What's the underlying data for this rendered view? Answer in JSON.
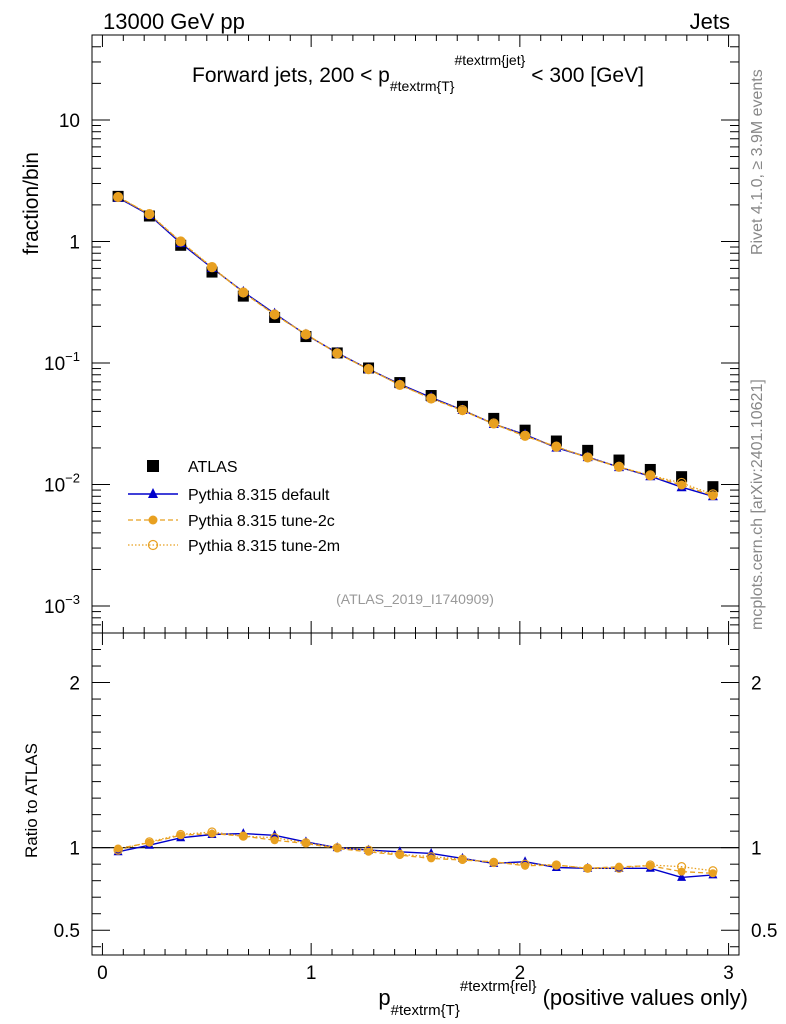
{
  "header": {
    "left": "13000 GeV pp",
    "right": "Jets"
  },
  "side": {
    "rivet": "Rivet 4.1.0, ≥ 3.9M events",
    "mcplots": "mcplots.cern.ch [arXiv:2401.10621]"
  },
  "colors": {
    "data": "#000000",
    "default": "#0000cc",
    "tune2c": "#e8a020",
    "tune2m": "#e8a020"
  },
  "chart_data": {
    "type": "scatter",
    "title_parts": {
      "prefix": "Forward jets, 200 < p",
      "sub": "#textrm{T}",
      "sup": "#textrm{jet}",
      "suffix": "< 300 [GeV]"
    },
    "ylabel": "fraction/bin",
    "ratio_ylabel": "Ratio to ATLAS",
    "xlabel_parts": {
      "p": "p",
      "sub": "#textrm{T}",
      "sup": "#textrm{rel}",
      "suffix": "(positive values only)"
    },
    "watermark": "(ATLAS_2019_I1740909)",
    "xlim": [
      -0.05,
      3.05
    ],
    "ylim": [
      0.0006,
      50
    ],
    "ratio_ylim": [
      0.35,
      2.3
    ],
    "x_ticks": [
      {
        "v": 0,
        "label": "0"
      },
      {
        "v": 1,
        "label": "1"
      },
      {
        "v": 2,
        "label": "2"
      },
      {
        "v": 3,
        "label": "3"
      }
    ],
    "y_ticks": [
      {
        "v": 10,
        "base": "10",
        "exp": ""
      },
      {
        "v": 1,
        "base": "1",
        "exp": ""
      },
      {
        "v": 0.1,
        "base": "10",
        "exp": "−1"
      },
      {
        "v": 0.01,
        "base": "10",
        "exp": "−2"
      },
      {
        "v": 0.001,
        "base": "10",
        "exp": "−3"
      }
    ],
    "ratio_ticks": [
      {
        "v": 2,
        "label": "2"
      },
      {
        "v": 1,
        "label": "1"
      },
      {
        "v": 0.5,
        "label": "0.5"
      }
    ],
    "x": [
      0.075,
      0.225,
      0.375,
      0.525,
      0.675,
      0.825,
      0.975,
      1.125,
      1.275,
      1.425,
      1.575,
      1.725,
      1.875,
      2.025,
      2.175,
      2.325,
      2.475,
      2.625,
      2.775,
      2.925
    ],
    "series": [
      {
        "name": "ATLAS",
        "key": "data",
        "style": "square",
        "values": [
          2.35,
          1.62,
          0.93,
          0.56,
          0.355,
          0.237,
          0.165,
          0.121,
          0.091,
          0.069,
          0.054,
          0.044,
          0.035,
          0.028,
          0.0228,
          0.0191,
          0.0159,
          0.0133,
          0.0116,
          0.0096
        ]
      },
      {
        "name": "Pythia 8.315 default",
        "key": "default",
        "style": "triangle",
        "values": [
          2.29,
          1.65,
          0.97,
          0.605,
          0.385,
          0.255,
          0.171,
          0.121,
          0.089,
          0.067,
          0.052,
          0.041,
          0.0315,
          0.0257,
          0.0201,
          0.0168,
          0.0139,
          0.0117,
          0.0095,
          0.008
        ],
        "ratio": [
          0.975,
          1.015,
          1.06,
          1.08,
          1.085,
          1.075,
          1.035,
          1.0,
          0.985,
          0.975,
          0.965,
          0.935,
          0.905,
          0.915,
          0.88,
          0.875,
          0.875,
          0.875,
          0.82,
          0.835
        ]
      },
      {
        "name": "Pythia 8.315 tune-2c",
        "key": "tune2c",
        "style": "circle",
        "values": [
          2.34,
          1.67,
          1.0,
          0.61,
          0.38,
          0.249,
          0.173,
          0.12,
          0.089,
          0.066,
          0.051,
          0.0405,
          0.0315,
          0.025,
          0.0205,
          0.0166,
          0.014,
          0.0118,
          0.0099,
          0.0081
        ],
        "ratio": [
          0.995,
          1.03,
          1.075,
          1.085,
          1.07,
          1.045,
          1.025,
          0.995,
          0.975,
          0.955,
          0.935,
          0.925,
          0.915,
          0.89,
          0.895,
          0.875,
          0.885,
          0.89,
          0.855,
          0.845
        ]
      },
      {
        "name": "Pythia 8.315 tune-2m",
        "key": "tune2m",
        "style": "open-circle",
        "values": [
          2.32,
          1.68,
          1.0,
          0.615,
          0.38,
          0.251,
          0.172,
          0.12,
          0.089,
          0.066,
          0.051,
          0.041,
          0.0318,
          0.0252,
          0.0205,
          0.0167,
          0.014,
          0.0119,
          0.0103,
          0.0083
        ],
        "ratio": [
          0.985,
          1.035,
          1.08,
          1.095,
          1.07,
          1.06,
          1.03,
          1.0,
          0.985,
          0.96,
          0.945,
          0.93,
          0.91,
          0.9,
          0.895,
          0.875,
          0.875,
          0.895,
          0.885,
          0.86
        ]
      }
    ]
  }
}
